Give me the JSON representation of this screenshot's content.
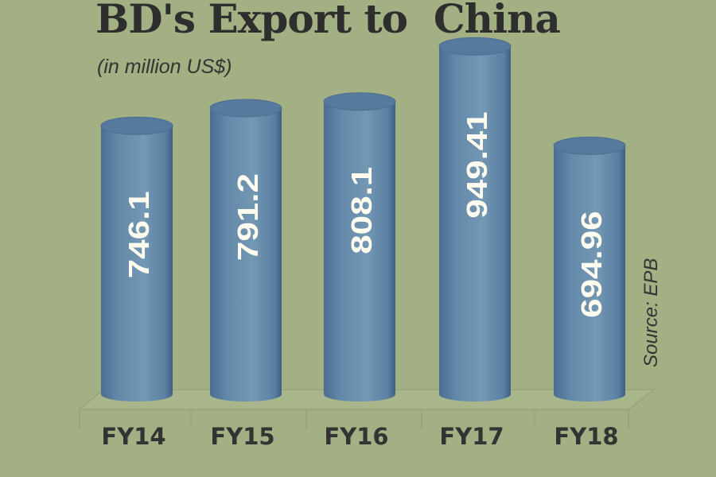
{
  "chart_data": {
    "type": "bar",
    "title": "BD's Export to  China",
    "subtitle": "(in million US$)",
    "categories": [
      "FY14",
      "FY15",
      "FY16",
      "FY17",
      "FY18"
    ],
    "values": [
      746.1,
      791.2,
      808.1,
      949.41,
      694.96
    ],
    "value_labels": [
      "746.1",
      "791.2",
      "808.1",
      "949.41",
      "694.96"
    ],
    "source": "Source: EPB",
    "xlabel": "",
    "ylabel": "",
    "colors": {
      "bar": "#6a90ae",
      "bar_edge": "#46688c",
      "background": "#a3b083",
      "text": "#333333"
    }
  }
}
